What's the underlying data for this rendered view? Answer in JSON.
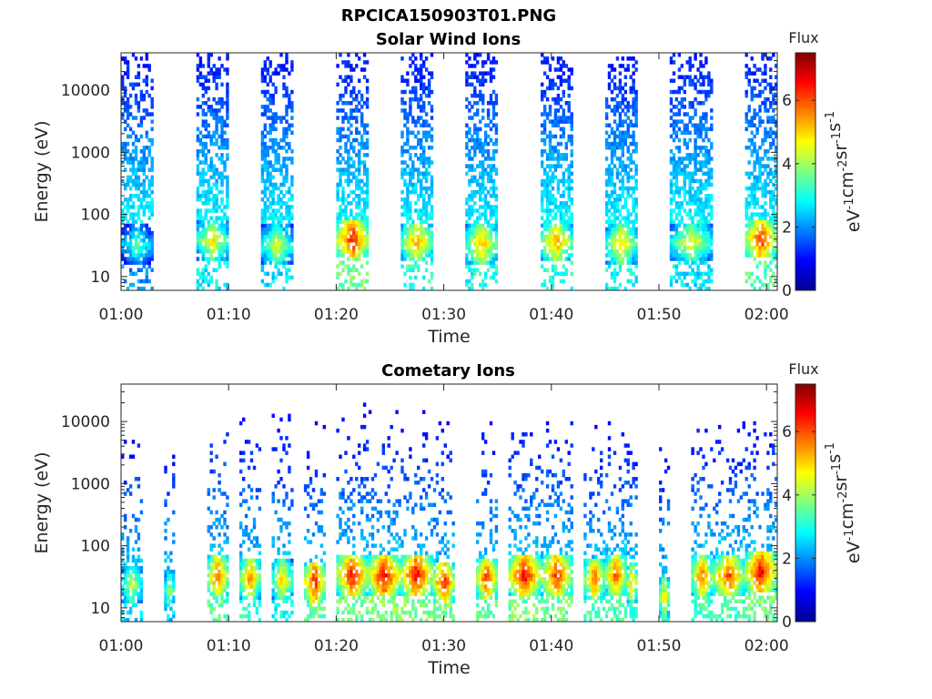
{
  "figure_title": "RPCICA150903T01.PNG",
  "chart_data": [
    {
      "type": "heatmap",
      "title": "Solar Wind Ions",
      "xlabel": "Time",
      "ylabel": "Energy (eV)",
      "x_range": [
        "01:00",
        "02:01"
      ],
      "x_ticks": [
        "01:00",
        "01:10",
        "01:20",
        "01:30",
        "01:40",
        "01:50",
        "02:00"
      ],
      "y_scale": "log",
      "y_range": [
        6,
        40000
      ],
      "y_ticks": [
        10,
        100,
        1000,
        10000
      ],
      "y_tick_labels": [
        "10",
        "100",
        "1000",
        "10000"
      ],
      "colorbar": {
        "title": "Flux",
        "label": "eV^-1 cm^-2 sr^-1 s^-1",
        "range": [
          0,
          7.5
        ],
        "ticks": [
          "0",
          "2",
          "4",
          "6"
        ]
      },
      "grid": false,
      "bursts": [
        {
          "start": "01:00",
          "end": "01:03",
          "peak_energy": 30,
          "peak_flux": 3.6
        },
        {
          "start": "01:07",
          "end": "01:10",
          "peak_energy": 36,
          "peak_flux": 5.0
        },
        {
          "start": "01:13",
          "end": "01:16",
          "peak_energy": 30,
          "peak_flux": 4.6
        },
        {
          "start": "01:20",
          "end": "01:23",
          "peak_energy": 38,
          "peak_flux": 6.6
        },
        {
          "start": "01:26",
          "end": "01:29",
          "peak_energy": 34,
          "peak_flux": 5.6
        },
        {
          "start": "01:32",
          "end": "01:35",
          "peak_energy": 32,
          "peak_flux": 5.4
        },
        {
          "start": "01:39",
          "end": "01:42",
          "peak_energy": 34,
          "peak_flux": 5.6
        },
        {
          "start": "01:45",
          "end": "01:48",
          "peak_energy": 32,
          "peak_flux": 5.2
        },
        {
          "start": "01:51",
          "end": "01:55",
          "peak_energy": 34,
          "peak_flux": 4.8
        },
        {
          "start": "01:58",
          "end": "02:01",
          "peak_energy": 38,
          "peak_flux": 6.4
        }
      ]
    },
    {
      "type": "heatmap",
      "title": "Cometary Ions",
      "xlabel": "Time",
      "ylabel": "Energy (eV)",
      "x_range": [
        "01:00",
        "02:01"
      ],
      "x_ticks": [
        "01:00",
        "01:10",
        "01:20",
        "01:30",
        "01:40",
        "01:50",
        "02:00"
      ],
      "y_scale": "log",
      "y_range": [
        6,
        40000
      ],
      "y_ticks": [
        10,
        100,
        1000,
        10000
      ],
      "y_tick_labels": [
        "10",
        "100",
        "1000",
        "10000"
      ],
      "colorbar": {
        "title": "Flux",
        "label": "eV^-1 cm^-2 sr^-1 s^-1",
        "range": [
          0,
          7.5
        ],
        "ticks": [
          "0",
          "2",
          "4",
          "6"
        ]
      },
      "grid": false,
      "bursts": [
        {
          "start": "01:00",
          "end": "01:02",
          "peak_energy": 22,
          "peak_flux": 4.6
        },
        {
          "start": "01:04",
          "end": "01:05",
          "peak_energy": 18,
          "peak_flux": 4.4
        },
        {
          "start": "01:08",
          "end": "01:10",
          "peak_energy": 30,
          "peak_flux": 6.2
        },
        {
          "start": "01:11",
          "end": "01:13",
          "peak_energy": 28,
          "peak_flux": 5.8
        },
        {
          "start": "01:14",
          "end": "01:16",
          "peak_energy": 26,
          "peak_flux": 5.2
        },
        {
          "start": "01:17",
          "end": "01:19",
          "peak_energy": 24,
          "peak_flux": 6.6
        },
        {
          "start": "01:20",
          "end": "01:23",
          "peak_energy": 32,
          "peak_flux": 6.6
        },
        {
          "start": "01:23",
          "end": "01:26",
          "peak_energy": 30,
          "peak_flux": 6.8
        },
        {
          "start": "01:26",
          "end": "01:29",
          "peak_energy": 32,
          "peak_flux": 6.8
        },
        {
          "start": "01:29",
          "end": "01:31",
          "peak_energy": 24,
          "peak_flux": 6.6
        },
        {
          "start": "01:33",
          "end": "01:35",
          "peak_energy": 28,
          "peak_flux": 6.4
        },
        {
          "start": "01:36",
          "end": "01:39",
          "peak_energy": 32,
          "peak_flux": 6.8
        },
        {
          "start": "01:39",
          "end": "01:42",
          "peak_energy": 32,
          "peak_flux": 6.4
        },
        {
          "start": "01:43",
          "end": "01:45",
          "peak_energy": 28,
          "peak_flux": 6.0
        },
        {
          "start": "01:45",
          "end": "01:47",
          "peak_energy": 32,
          "peak_flux": 6.2
        },
        {
          "start": "01:47",
          "end": "01:48",
          "peak_energy": 24,
          "peak_flux": 5.4
        },
        {
          "start": "01:50",
          "end": "01:51",
          "peak_energy": 14,
          "peak_flux": 5.2
        },
        {
          "start": "01:53",
          "end": "01:55",
          "peak_energy": 30,
          "peak_flux": 6.0
        },
        {
          "start": "01:55",
          "end": "01:58",
          "peak_energy": 30,
          "peak_flux": 6.2
        },
        {
          "start": "01:58",
          "end": "02:01",
          "peak_energy": 36,
          "peak_flux": 6.8
        }
      ]
    }
  ]
}
